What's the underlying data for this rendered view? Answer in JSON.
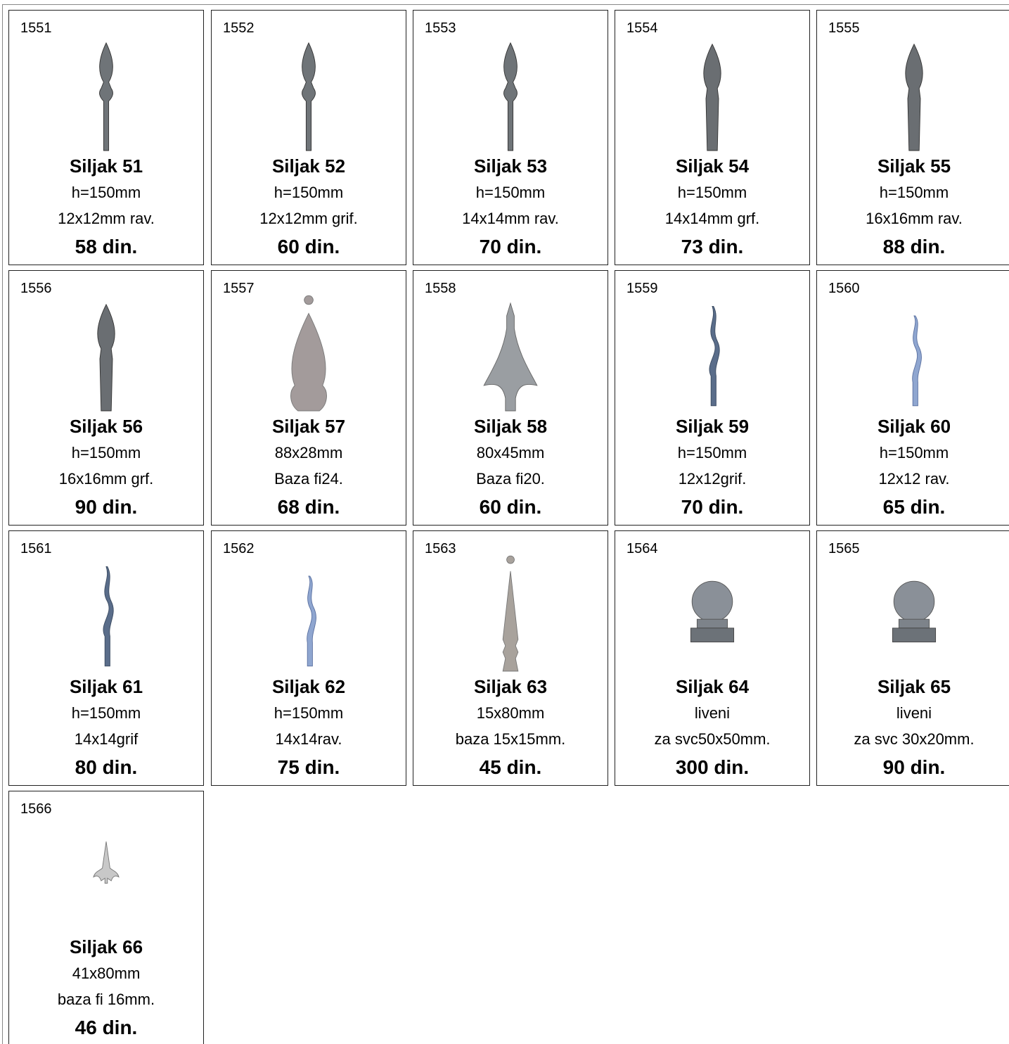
{
  "items": [
    {
      "code": "1551",
      "name": "Siljak 51",
      "lines": [
        "h=150mm",
        "12x12mm rav."
      ],
      "price": "58 din."
    },
    {
      "code": "1552",
      "name": "Siljak 52",
      "lines": [
        "h=150mm",
        "12x12mm grif."
      ],
      "price": "60 din."
    },
    {
      "code": "1553",
      "name": "Siljak 53",
      "lines": [
        "h=150mm",
        "14x14mm rav."
      ],
      "price": "70 din."
    },
    {
      "code": "1554",
      "name": "Siljak 54",
      "lines": [
        "h=150mm",
        "14x14mm grf."
      ],
      "price": "73 din."
    },
    {
      "code": "1555",
      "name": "Siljak 55",
      "lines": [
        "h=150mm",
        "16x16mm rav."
      ],
      "price": "88 din."
    },
    {
      "code": "1556",
      "name": "Siljak 56",
      "lines": [
        "h=150mm",
        "16x16mm grf."
      ],
      "price": "90 din."
    },
    {
      "code": "1557",
      "name": "Siljak 57",
      "lines": [
        "88x28mm",
        "Baza fi24."
      ],
      "price": "68 din."
    },
    {
      "code": "1558",
      "name": "Siljak 58",
      "lines": [
        "80x45mm",
        "Baza fi20."
      ],
      "price": "60 din."
    },
    {
      "code": "1559",
      "name": "Siljak 59",
      "lines": [
        "h=150mm",
        "12x12grif."
      ],
      "price": "70 din."
    },
    {
      "code": "1560",
      "name": "Siljak 60",
      "lines": [
        "h=150mm",
        "12x12 rav."
      ],
      "price": "65 din."
    },
    {
      "code": "1561",
      "name": "Siljak 61",
      "lines": [
        "h=150mm",
        "14x14grif"
      ],
      "price": "80 din."
    },
    {
      "code": "1562",
      "name": "Siljak 62",
      "lines": [
        "h=150mm",
        "14x14rav."
      ],
      "price": "75 din."
    },
    {
      "code": "1563",
      "name": "Siljak 63",
      "lines": [
        "15x80mm",
        "baza 15x15mm."
      ],
      "price": "45 din."
    },
    {
      "code": "1564",
      "name": "Siljak 64",
      "lines": [
        "liveni",
        "za svc50x50mm."
      ],
      "price": "300 din."
    },
    {
      "code": "1565",
      "name": "Siljak 65",
      "lines": [
        "liveni",
        "za svc 30x20mm."
      ],
      "price": "90 din."
    },
    {
      "code": "1566",
      "name": "Siljak 66",
      "lines": [
        "41x80mm",
        "baza fi 16mm."
      ],
      "price": "46 din."
    }
  ]
}
